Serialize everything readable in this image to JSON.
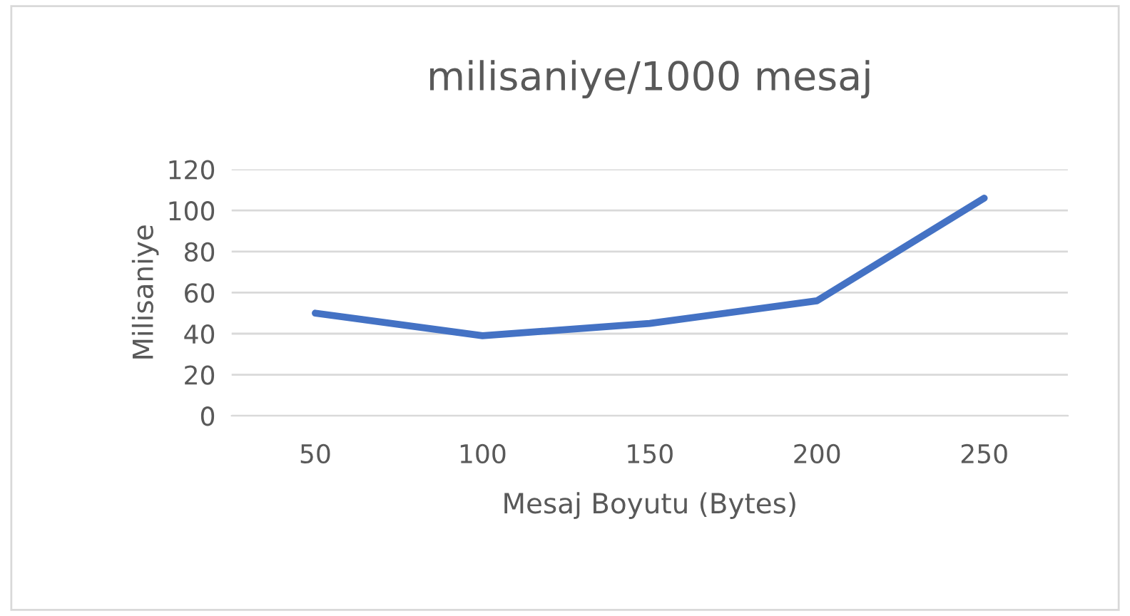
{
  "chart_data": {
    "type": "line",
    "title": "milisaniye/1000 mesaj",
    "xlabel": "Mesaj Boyutu (Bytes)",
    "ylabel": "Milisaniye",
    "categories": [
      "50",
      "100",
      "150",
      "200",
      "250"
    ],
    "series": [
      {
        "color": "#4472c4",
        "values": [
          50,
          39,
          45,
          56,
          106
        ]
      }
    ],
    "ylim": [
      0,
      120
    ],
    "yticks": [
      0,
      20,
      40,
      60,
      80,
      100,
      120
    ],
    "grid": "y",
    "legend": false,
    "marker": "none",
    "line_style": "solid"
  }
}
